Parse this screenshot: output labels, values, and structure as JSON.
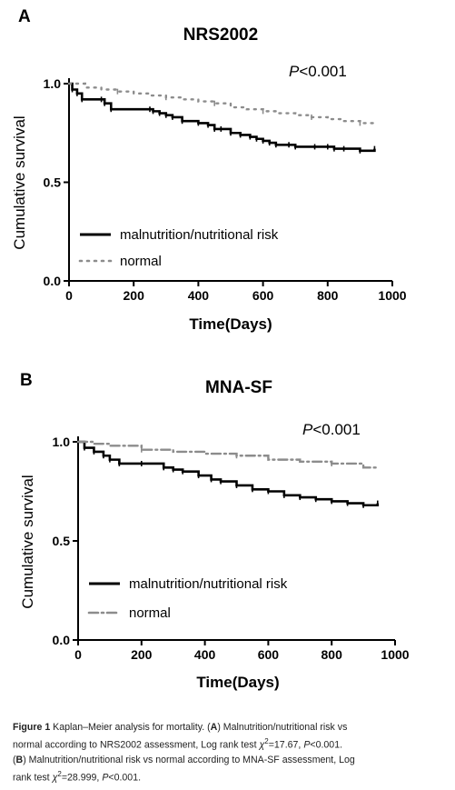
{
  "chart_data": [
    {
      "panel_letter": "A",
      "type": "line",
      "title": "NRS2002",
      "annotation": {
        "p_label": "P",
        "p_rest": "<0.001"
      },
      "xlabel": "Time(Days)",
      "ylabel": "Cumulative survival",
      "xlim": [
        0,
        1000
      ],
      "ylim": [
        0,
        1.0
      ],
      "xticks": [
        "0",
        "200",
        "400",
        "600",
        "800",
        "1000"
      ],
      "yticks": [
        "0.0",
        "0.5",
        "1.0"
      ],
      "legend_position": "bottom-left",
      "series": [
        {
          "name": "malnutrition/nutritional risk",
          "style": "solid",
          "color": "#000000",
          "x": [
            0,
            10,
            25,
            40,
            100,
            110,
            130,
            250,
            260,
            280,
            300,
            320,
            350,
            400,
            430,
            450,
            470,
            500,
            530,
            560,
            580,
            600,
            620,
            640,
            680,
            700,
            760,
            800,
            820,
            850,
            900,
            945
          ],
          "y": [
            1.0,
            0.97,
            0.95,
            0.92,
            0.92,
            0.9,
            0.87,
            0.87,
            0.86,
            0.85,
            0.84,
            0.83,
            0.81,
            0.8,
            0.79,
            0.77,
            0.77,
            0.75,
            0.74,
            0.73,
            0.72,
            0.71,
            0.7,
            0.69,
            0.69,
            0.68,
            0.68,
            0.68,
            0.67,
            0.67,
            0.66,
            0.67
          ]
        },
        {
          "name": "normal",
          "style": "dotted",
          "color": "#8c8c8c",
          "x": [
            0,
            50,
            100,
            150,
            200,
            250,
            300,
            350,
            400,
            450,
            500,
            550,
            600,
            650,
            700,
            750,
            800,
            850,
            900,
            945
          ],
          "y": [
            1.0,
            0.98,
            0.97,
            0.96,
            0.95,
            0.94,
            0.93,
            0.92,
            0.91,
            0.9,
            0.88,
            0.87,
            0.86,
            0.85,
            0.84,
            0.83,
            0.82,
            0.81,
            0.8,
            0.8
          ]
        }
      ]
    },
    {
      "panel_letter": "B",
      "type": "line",
      "title": "MNA-SF",
      "annotation": {
        "p_label": "P",
        "p_rest": "<0.001"
      },
      "xlabel": "Time(Days)",
      "ylabel": "Cumulative survival",
      "xlim": [
        0,
        1000
      ],
      "ylim": [
        0,
        1.0
      ],
      "xticks": [
        "0",
        "200",
        "400",
        "600",
        "800",
        "1000"
      ],
      "yticks": [
        "0.0",
        "0.5",
        "1.0"
      ],
      "legend_position": "bottom-left",
      "series": [
        {
          "name": "malnutrition/nutritional risk",
          "style": "solid",
          "color": "#000000",
          "x": [
            0,
            20,
            50,
            80,
            100,
            130,
            200,
            270,
            300,
            330,
            380,
            420,
            450,
            500,
            550,
            600,
            650,
            700,
            750,
            800,
            850,
            900,
            945
          ],
          "y": [
            1.0,
            0.97,
            0.95,
            0.93,
            0.91,
            0.89,
            0.89,
            0.87,
            0.86,
            0.85,
            0.83,
            0.81,
            0.8,
            0.78,
            0.76,
            0.75,
            0.73,
            0.72,
            0.71,
            0.7,
            0.69,
            0.68,
            0.69
          ]
        },
        {
          "name": "normal",
          "style": "dash-dot",
          "color": "#8c8c8c",
          "x": [
            0,
            50,
            100,
            200,
            300,
            400,
            500,
            600,
            700,
            800,
            900,
            945
          ],
          "y": [
            1.0,
            0.99,
            0.98,
            0.96,
            0.95,
            0.94,
            0.93,
            0.91,
            0.9,
            0.89,
            0.87,
            0.87
          ]
        }
      ]
    }
  ],
  "caption": {
    "fig_label": "Figure 1",
    "lines": [
      {
        "parts": [
          {
            "t": "Kaplan–Meier analysis for mortality. (",
            "s": ""
          },
          {
            "t": "A",
            "s": "b"
          },
          {
            "t": ") Malnutrition/nutritional risk vs",
            "s": ""
          }
        ]
      },
      {
        "parts": [
          {
            "t": "normal according to NRS2002 assessment, Log rank test ",
            "s": ""
          },
          {
            "t": "χ",
            "s": "i"
          },
          {
            "t": "2",
            "s": "sup"
          },
          {
            "t": "=17.67, ",
            "s": ""
          },
          {
            "t": "P",
            "s": "i"
          },
          {
            "t": "<0.001.",
            "s": ""
          }
        ]
      },
      {
        "parts": [
          {
            "t": "(",
            "s": ""
          },
          {
            "t": "B",
            "s": "b"
          },
          {
            "t": ") Malnutrition/nutritional risk vs normal according to MNA-SF assessment, Log",
            "s": ""
          }
        ]
      },
      {
        "parts": [
          {
            "t": "rank test ",
            "s": ""
          },
          {
            "t": "χ",
            "s": "i"
          },
          {
            "t": "2",
            "s": "sup"
          },
          {
            "t": "=28.999, ",
            "s": ""
          },
          {
            "t": "P",
            "s": "i"
          },
          {
            "t": "<0.001.",
            "s": ""
          }
        ]
      }
    ]
  }
}
